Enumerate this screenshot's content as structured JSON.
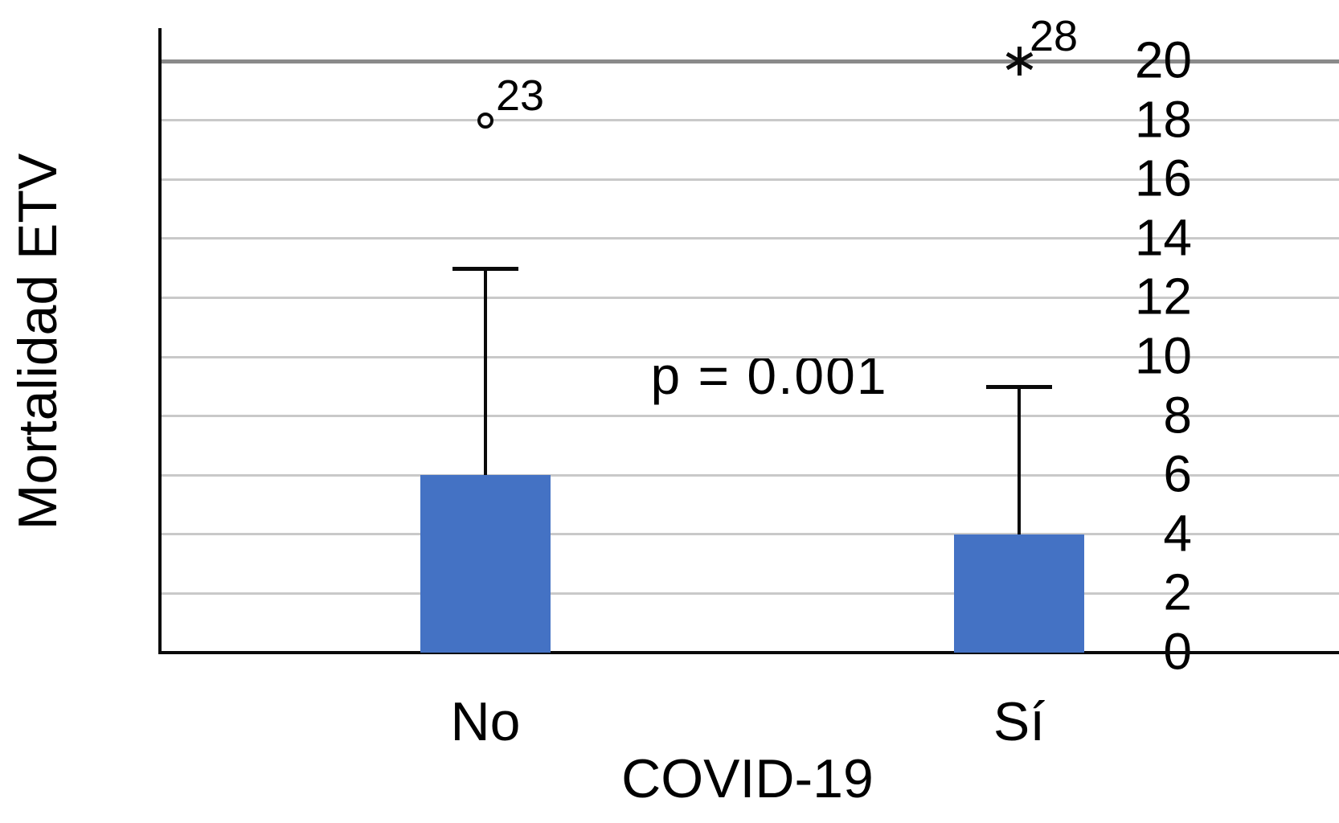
{
  "chart_data": {
    "type": "bar",
    "title": "",
    "xlabel": "COVID-19",
    "ylabel": "Mortalidad ETV",
    "categories": [
      "No",
      "Sí"
    ],
    "series": [
      {
        "name": "Mortalidad ETV",
        "values": [
          6,
          4
        ],
        "error_upper": [
          13,
          9
        ]
      }
    ],
    "outliers": [
      {
        "category": "No",
        "value": 18,
        "case_label": "23",
        "marker": "circle"
      },
      {
        "category": "Sí",
        "value": 20,
        "case_label": "28",
        "marker": "asterisk"
      }
    ],
    "annotation": "p = 0.001",
    "ylim": [
      0,
      20
    ],
    "yticks": [
      0,
      2,
      4,
      6,
      8,
      10,
      12,
      14,
      16,
      18,
      20
    ],
    "grid": true,
    "legend": "none",
    "colors": {
      "bar": "#4472C4",
      "gridline": "#c9c9c9",
      "gridline_top": "#8a8a8a",
      "axis": "#0a0a0a",
      "text": "#000000"
    }
  }
}
